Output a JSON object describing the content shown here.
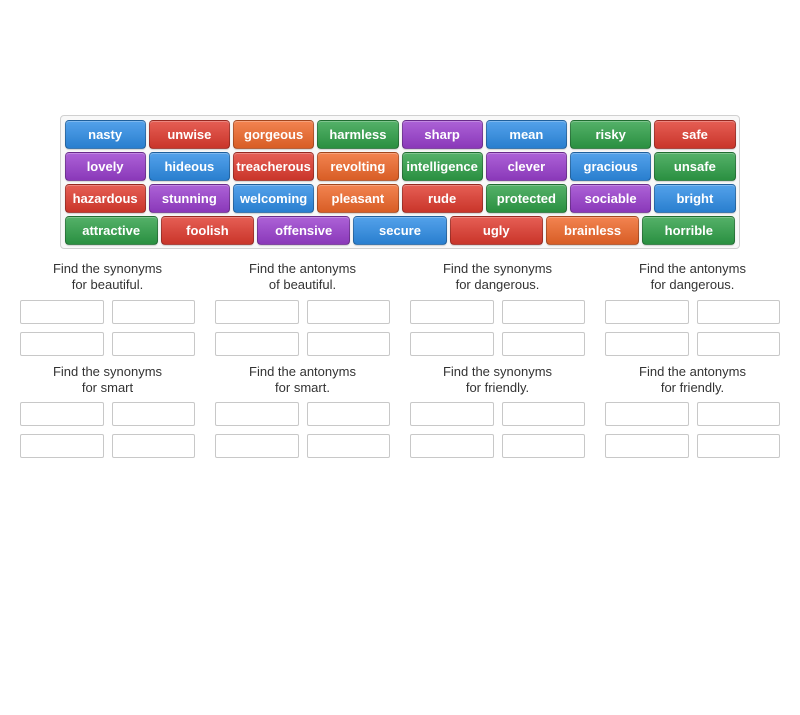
{
  "colors": {
    "blue": "#2e8de6",
    "red": "#e03b2f",
    "orange": "#f0682a",
    "green": "#2fa048",
    "purple": "#9a3fce",
    "text": "#ffffff",
    "task_text": "#333333",
    "slot_border": "#c8c8c8",
    "bank_border": "#d0d0d0"
  },
  "word_rows": [
    [
      {
        "label": "nasty",
        "color": "#2e8de6"
      },
      {
        "label": "unwise",
        "color": "#e03b2f"
      },
      {
        "label": "gorgeous",
        "color": "#f0682a"
      },
      {
        "label": "harmless",
        "color": "#2fa048"
      },
      {
        "label": "sharp",
        "color": "#9a3fce"
      },
      {
        "label": "mean",
        "color": "#2e8de6"
      },
      {
        "label": "risky",
        "color": "#2fa048"
      },
      {
        "label": "safe",
        "color": "#e03b2f"
      }
    ],
    [
      {
        "label": "lovely",
        "color": "#9a3fce"
      },
      {
        "label": "hideous",
        "color": "#2e8de6"
      },
      {
        "label": "treacherous",
        "color": "#e03b2f"
      },
      {
        "label": "revolting",
        "color": "#f0682a"
      },
      {
        "label": "intelligence",
        "color": "#2fa048"
      },
      {
        "label": "clever",
        "color": "#9a3fce"
      },
      {
        "label": "gracious",
        "color": "#2e8de6"
      },
      {
        "label": "unsafe",
        "color": "#2fa048"
      }
    ],
    [
      {
        "label": "hazardous",
        "color": "#e03b2f"
      },
      {
        "label": "stunning",
        "color": "#9a3fce"
      },
      {
        "label": "welcoming",
        "color": "#2e8de6"
      },
      {
        "label": "pleasant",
        "color": "#f0682a"
      },
      {
        "label": "rude",
        "color": "#e03b2f"
      },
      {
        "label": "protected",
        "color": "#2fa048"
      },
      {
        "label": "sociable",
        "color": "#9a3fce"
      },
      {
        "label": "bright",
        "color": "#2e8de6"
      }
    ],
    [
      {
        "label": "attractive",
        "color": "#2fa048"
      },
      {
        "label": "foolish",
        "color": "#e03b2f"
      },
      {
        "label": "offensive",
        "color": "#9a3fce"
      },
      {
        "label": "secure",
        "color": "#2e8de6"
      },
      {
        "label": "ugly",
        "color": "#e03b2f"
      },
      {
        "label": "brainless",
        "color": "#f0682a"
      },
      {
        "label": "horrible",
        "color": "#2fa048"
      }
    ]
  ],
  "tasks": [
    {
      "line1": "Find the synonyms",
      "line2": "for beautiful.",
      "slots": 4
    },
    {
      "line1": "Find the antonyms",
      "line2": "of beautiful.",
      "slots": 4
    },
    {
      "line1": "Find the synonyms",
      "line2": "for dangerous.",
      "slots": 4
    },
    {
      "line1": "Find the antonyms",
      "line2": "for dangerous.",
      "slots": 4
    },
    {
      "line1": "Find the synonyms",
      "line2": "for smart",
      "slots": 4
    },
    {
      "line1": "Find the antonyms",
      "line2": "for smart.",
      "slots": 4
    },
    {
      "line1": "Find the synonyms",
      "line2": "for friendly.",
      "slots": 4
    },
    {
      "line1": "Find the antonyms",
      "line2": "for friendly.",
      "slots": 4
    }
  ]
}
